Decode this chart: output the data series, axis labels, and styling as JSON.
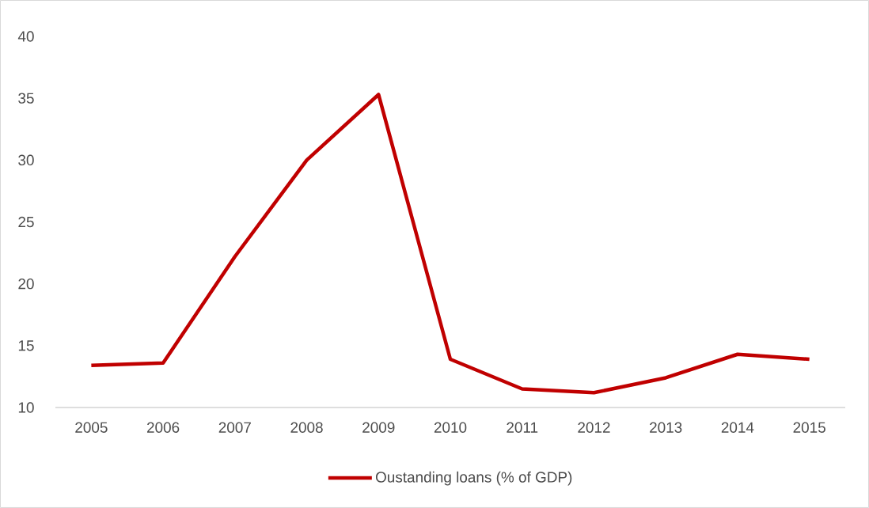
{
  "chart_data": {
    "type": "line",
    "categories": [
      "2005",
      "2006",
      "2007",
      "2008",
      "2009",
      "2010",
      "2011",
      "2012",
      "2013",
      "2014",
      "2015"
    ],
    "series": [
      {
        "name": "Oustanding loans (% of GDP)",
        "color": "#c00000",
        "values": [
          13.4,
          13.6,
          22.2,
          30.0,
          35.3,
          13.9,
          11.5,
          11.2,
          12.4,
          14.3,
          13.9
        ]
      }
    ],
    "ylim": [
      10,
      40
    ],
    "yticks": [
      10,
      15,
      20,
      25,
      30,
      35,
      40
    ],
    "grid": false,
    "legend": "bottom",
    "marker": "none",
    "line_style": "solid"
  }
}
